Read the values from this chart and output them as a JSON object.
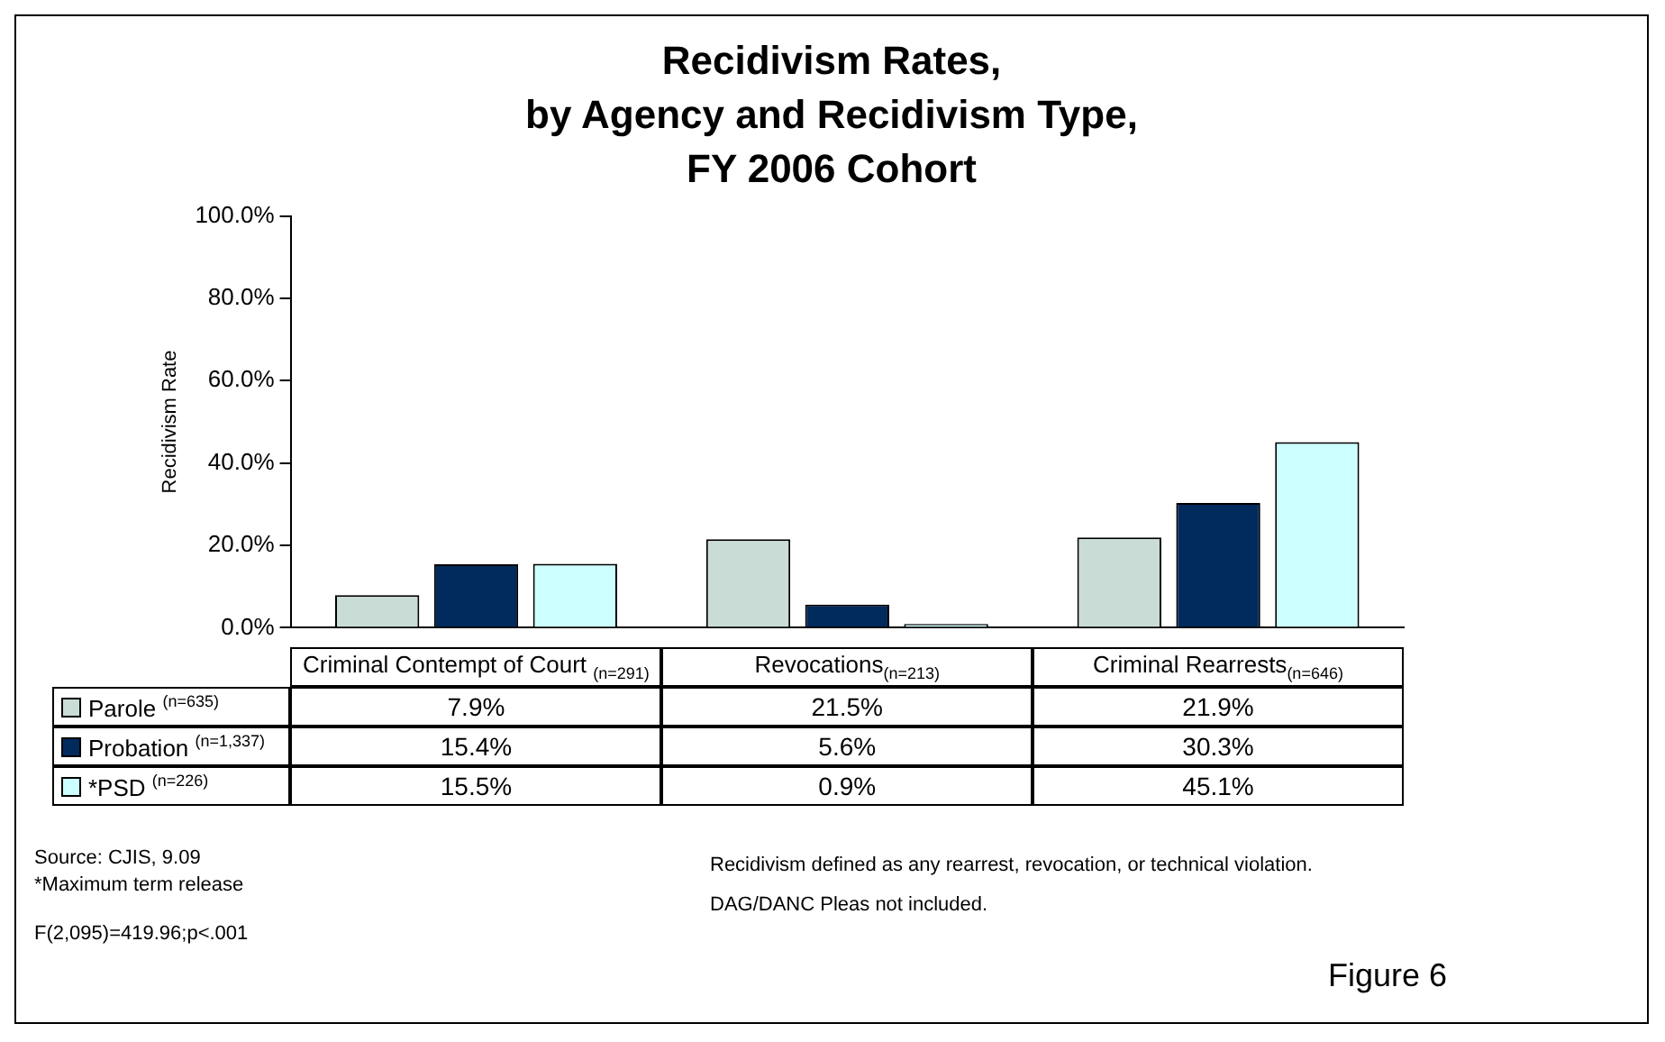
{
  "chart_data": {
    "type": "bar",
    "title": "Recidivism Rates,\nby Agency and Recidivism Type,\nFY 2006 Cohort",
    "ylabel": "Recidivism Rate",
    "categories": [
      "Criminal Contempt of Court $_{(n=291)}$",
      "Revocations$_{(n=213)}$",
      "Criminal Rearrests$_{(n=646)}$"
    ],
    "series": [
      {
        "name": "Parole $^{(n=635)}$",
        "color": "#c9dcd6",
        "values": [
          7.9,
          21.5,
          21.9
        ],
        "value_labels": [
          "7.9%",
          "21.5%",
          "21.9%"
        ]
      },
      {
        "name": "Probation $^{(n=1,337)}$",
        "color": "#002b5c",
        "values": [
          15.4,
          5.6,
          30.3
        ],
        "value_labels": [
          "15.4%",
          "5.6%",
          "30.3%"
        ]
      },
      {
        "name": "*PSD $^{(n=226)}$",
        "color": "#ccffff",
        "values": [
          15.5,
          0.9,
          45.1
        ],
        "value_labels": [
          "15.5%",
          "0.9%",
          "45.1%"
        ]
      }
    ],
    "ylim": [
      0,
      100
    ],
    "yticks": [
      {
        "value": 0,
        "label": "0.0%"
      },
      {
        "value": 20,
        "label": "20.0%"
      },
      {
        "value": 40,
        "label": "40.0%"
      },
      {
        "value": 60,
        "label": "60.0%"
      },
      {
        "value": 80,
        "label": "80.0%"
      },
      {
        "value": 100,
        "label": "100.0%"
      }
    ],
    "grid": false,
    "legend": "bottom",
    "annotations": [
      "Source: CJIS, 9.09",
      "*Maximum term release",
      "F(2,095)=419.96;p<.001",
      "Recidivism defined as any rearrest, revocation, or technical violation.",
      "DAG/DANC Pleas not included.",
      "Figure 6"
    ]
  }
}
